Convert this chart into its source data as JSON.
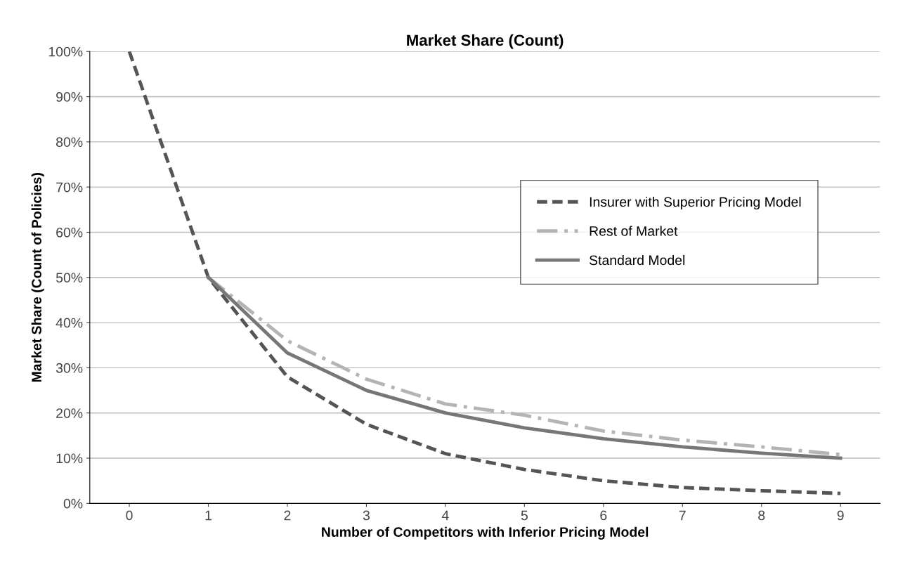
{
  "chart_data": {
    "type": "line",
    "title": "Market Share (Count)",
    "xlabel": "Number of Competitors with Inferior Pricing Model",
    "ylabel": "Market Share (Count of Policies)",
    "categories": [
      "0",
      "1",
      "2",
      "3",
      "4",
      "5",
      "6",
      "7",
      "8",
      "9"
    ],
    "series": [
      {
        "name": "Insurer with Superior Pricing Model",
        "color": "#555555",
        "line_style": "dashed",
        "values": [
          100,
          50,
          28,
          17.5,
          11,
          7.5,
          5,
          3.5,
          2.8,
          2.2
        ]
      },
      {
        "name": "Rest of Market",
        "color": "#b4b4b4",
        "line_style": "dashdot",
        "values": [
          null,
          50,
          36,
          27.5,
          22,
          19.5,
          16,
          14,
          12.5,
          10.8
        ]
      },
      {
        "name": "Standard Model",
        "color": "#777777",
        "line_style": "solid",
        "values": [
          null,
          50,
          33.3,
          25,
          20,
          16.7,
          14.3,
          12.5,
          11.1,
          10
        ]
      }
    ],
    "ylim": [
      0,
      100
    ],
    "yticks": [
      {
        "value": 0,
        "label": "0%"
      },
      {
        "value": 10,
        "label": "10%"
      },
      {
        "value": 20,
        "label": "20%"
      },
      {
        "value": 30,
        "label": "30%"
      },
      {
        "value": 40,
        "label": "40%"
      },
      {
        "value": 50,
        "label": "50%"
      },
      {
        "value": 60,
        "label": "60%"
      },
      {
        "value": 70,
        "label": "70%"
      },
      {
        "value": 80,
        "label": "80%"
      },
      {
        "value": 90,
        "label": "90%"
      },
      {
        "value": 100,
        "label": "100%"
      }
    ],
    "grid": "y",
    "legend": "center right",
    "marker": "none"
  }
}
